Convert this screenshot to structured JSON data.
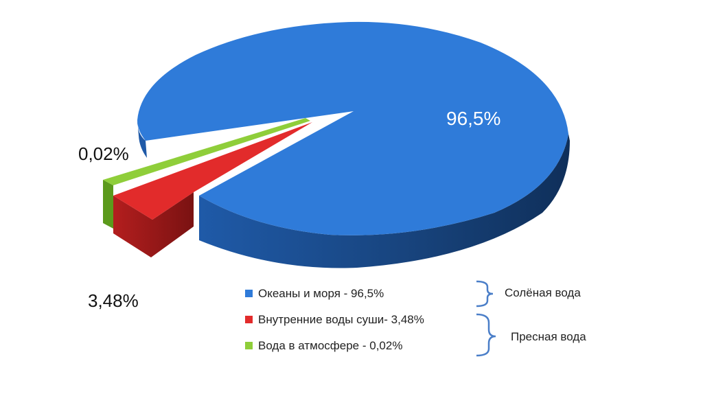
{
  "chart_data": {
    "type": "pie",
    "style": "3d-exploded",
    "slices": [
      {
        "label": "Океаны и моря  - 96,5%",
        "value": 96.5,
        "display": "96,5%",
        "color": "#2f7bd9",
        "side_color": "#17427a"
      },
      {
        "label": "Внутренние воды суши- 3,48%",
        "value": 3.48,
        "display": "3,48%",
        "color": "#e22b2b",
        "side_color": "#8e1717"
      },
      {
        "label": "Вода в атмосфере - 0,02%",
        "value": 0.02,
        "display": "0,02%",
        "color": "#8fce3a",
        "side_color": "#5c9a1c"
      }
    ],
    "groups": [
      {
        "label": "Солёная вода",
        "members": [
          "Океаны и моря  - 96,5%"
        ]
      },
      {
        "label": "Пресная вода",
        "members": [
          "Внутренние воды суши- 3,48%",
          "Вода в атмосфере - 0,02%"
        ]
      }
    ],
    "legend_placement": "bottom-right"
  }
}
